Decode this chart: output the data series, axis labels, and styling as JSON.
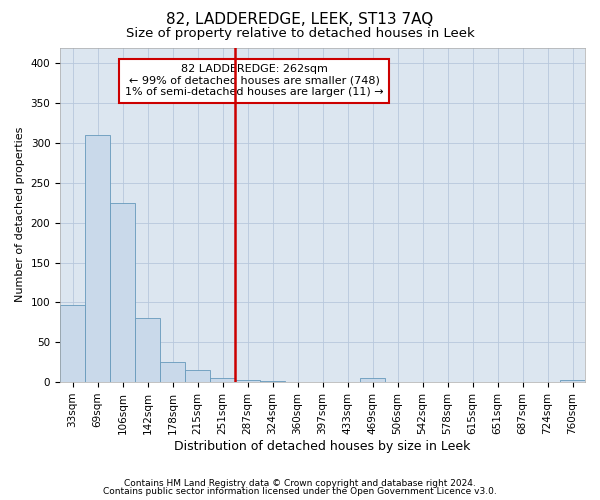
{
  "title": "82, LADDEREDGE, LEEK, ST13 7AQ",
  "subtitle": "Size of property relative to detached houses in Leek",
  "xlabel": "Distribution of detached houses by size in Leek",
  "ylabel": "Number of detached properties",
  "categories": [
    "33sqm",
    "69sqm",
    "106sqm",
    "142sqm",
    "178sqm",
    "215sqm",
    "251sqm",
    "287sqm",
    "324sqm",
    "360sqm",
    "397sqm",
    "433sqm",
    "469sqm",
    "506sqm",
    "542sqm",
    "578sqm",
    "615sqm",
    "651sqm",
    "687sqm",
    "724sqm",
    "760sqm"
  ],
  "bar_values": [
    97,
    310,
    225,
    80,
    25,
    15,
    5,
    3,
    2,
    0,
    0,
    0,
    5,
    0,
    0,
    0,
    0,
    0,
    0,
    0,
    3
  ],
  "bar_color": "#c9d9ea",
  "bar_edge_color": "#6699bb",
  "bar_edge_width": 0.6,
  "red_line_color": "#cc0000",
  "annotation_text": "82 LADDEREDGE: 262sqm\n← 99% of detached houses are smaller (748)\n1% of semi-detached houses are larger (11) →",
  "annotation_box_color": "#cc0000",
  "ylim": [
    0,
    420
  ],
  "yticks": [
    0,
    50,
    100,
    150,
    200,
    250,
    300,
    350,
    400
  ],
  "grid_color": "#b8c8dc",
  "bg_color": "#dce6f0",
  "footer_line1": "Contains HM Land Registry data © Crown copyright and database right 2024.",
  "footer_line2": "Contains public sector information licensed under the Open Government Licence v3.0.",
  "title_fontsize": 11,
  "subtitle_fontsize": 9.5,
  "xlabel_fontsize": 9,
  "ylabel_fontsize": 8,
  "tick_fontsize": 7.5,
  "annotation_fontsize": 8,
  "footer_fontsize": 6.5
}
